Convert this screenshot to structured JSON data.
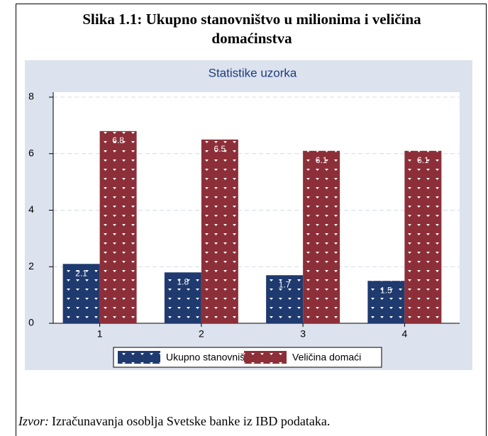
{
  "caption": "Slika 1.1:  Ukupno stanovništvo u milionima i veličina domaćinstva",
  "source": {
    "label": "Izvor:",
    "text": "Izračunavanja osoblja Svetske banke iz IBD podataka."
  },
  "chart_data": {
    "type": "bar",
    "title": "Statistike uzorka",
    "categories": [
      "1",
      "2",
      "3",
      "4"
    ],
    "series": [
      {
        "name": "Ukupno stanovniš",
        "color": "#1f3a6e",
        "values": [
          2.1,
          1.8,
          1.7,
          1.5
        ]
      },
      {
        "name": "Veličina domaći",
        "color": "#8c2f39",
        "values": [
          6.8,
          6.5,
          6.1,
          6.1
        ]
      }
    ],
    "ylim": [
      0,
      8
    ],
    "yticks": [
      0,
      2,
      4,
      6,
      8
    ],
    "grid": true
  }
}
